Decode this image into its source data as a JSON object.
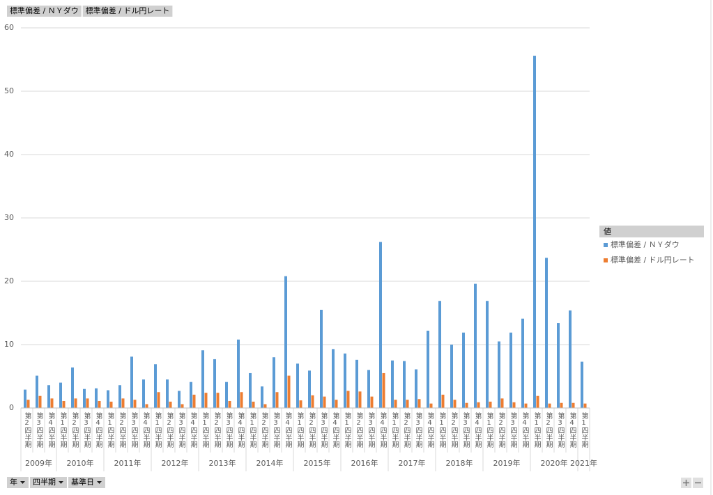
{
  "buttons": {
    "top": [
      "標準偏差 / ＮＹダウ",
      "標準偏差 / ドル円レート"
    ],
    "bottom": [
      "年",
      "四半期",
      "基準日"
    ]
  },
  "legend_title": "値",
  "chart_data": {
    "type": "bar",
    "years": [
      {
        "label": "2009年",
        "quarters": [
          "第2四半期",
          "第3四半期",
          "第4四半期"
        ]
      },
      {
        "label": "2010年",
        "quarters": [
          "第1四半期",
          "第2四半期",
          "第3四半期",
          "第4四半期"
        ]
      },
      {
        "label": "2011年",
        "quarters": [
          "第1四半期",
          "第2四半期",
          "第3四半期",
          "第4四半期"
        ]
      },
      {
        "label": "2012年",
        "quarters": [
          "第1四半期",
          "第2四半期",
          "第3四半期",
          "第4四半期"
        ]
      },
      {
        "label": "2013年",
        "quarters": [
          "第1四半期",
          "第2四半期",
          "第3四半期",
          "第4四半期"
        ]
      },
      {
        "label": "2014年",
        "quarters": [
          "第1四半期",
          "第2四半期",
          "第3四半期",
          "第4四半期"
        ]
      },
      {
        "label": "2015年",
        "quarters": [
          "第1四半期",
          "第2四半期",
          "第3四半期",
          "第4四半期"
        ]
      },
      {
        "label": "2016年",
        "quarters": [
          "第1四半期",
          "第2四半期",
          "第3四半期",
          "第4四半期"
        ]
      },
      {
        "label": "2017年",
        "quarters": [
          "第1四半期",
          "第2四半期",
          "第3四半期",
          "第4四半期"
        ]
      },
      {
        "label": "2018年",
        "quarters": [
          "第1四半期",
          "第2四半期",
          "第3四半期",
          "第4四半期"
        ]
      },
      {
        "label": "2019年",
        "quarters": [
          "第1四半期",
          "第2四半期",
          "第3四半期",
          "第4四半期"
        ]
      },
      {
        "label": "2020年",
        "quarters": [
          "第1四半期",
          "第2四半期",
          "第3四半期",
          "第4四半期"
        ]
      },
      {
        "label": "2021年",
        "quarters": [
          "第1四半期"
        ]
      }
    ],
    "series": [
      {
        "name": "標準偏差 / ＮＹダウ",
        "color": "#5b9bd5",
        "values": [
          2.9,
          5.1,
          3.6,
          4.0,
          6.4,
          3.0,
          3.1,
          2.8,
          3.6,
          8.1,
          4.5,
          6.9,
          4.5,
          2.7,
          4.1,
          9.1,
          7.7,
          4.1,
          10.8,
          5.5,
          3.4,
          8.0,
          20.8,
          7.0,
          5.9,
          15.5,
          9.3,
          8.6,
          7.6,
          6.0,
          26.2,
          7.5,
          7.4,
          6.1,
          12.2,
          16.9,
          10.0,
          11.9,
          19.6,
          16.9,
          10.5,
          11.9,
          14.1,
          55.6,
          23.7,
          13.4,
          15.4,
          7.3
        ]
      },
      {
        "name": "標準偏差 / ドル円レート",
        "color": "#ed7d31",
        "values": [
          1.3,
          1.9,
          1.5,
          1.1,
          1.5,
          1.5,
          1.1,
          1.0,
          1.5,
          1.3,
          0.6,
          2.5,
          1.0,
          0.6,
          2.1,
          2.4,
          2.4,
          1.1,
          2.5,
          1.0,
          0.6,
          2.5,
          5.1,
          1.2,
          2.0,
          1.8,
          1.3,
          2.7,
          2.6,
          1.8,
          5.5,
          1.3,
          1.3,
          1.4,
          0.7,
          2.1,
          1.3,
          0.8,
          0.9,
          1.0,
          1.5,
          0.9,
          0.7,
          1.9,
          0.7,
          0.8,
          0.8,
          0.7
        ]
      }
    ],
    "ylim": [
      0,
      60
    ],
    "yticks": [
      0,
      10,
      20,
      30,
      40,
      50,
      60
    ],
    "grid": true
  }
}
